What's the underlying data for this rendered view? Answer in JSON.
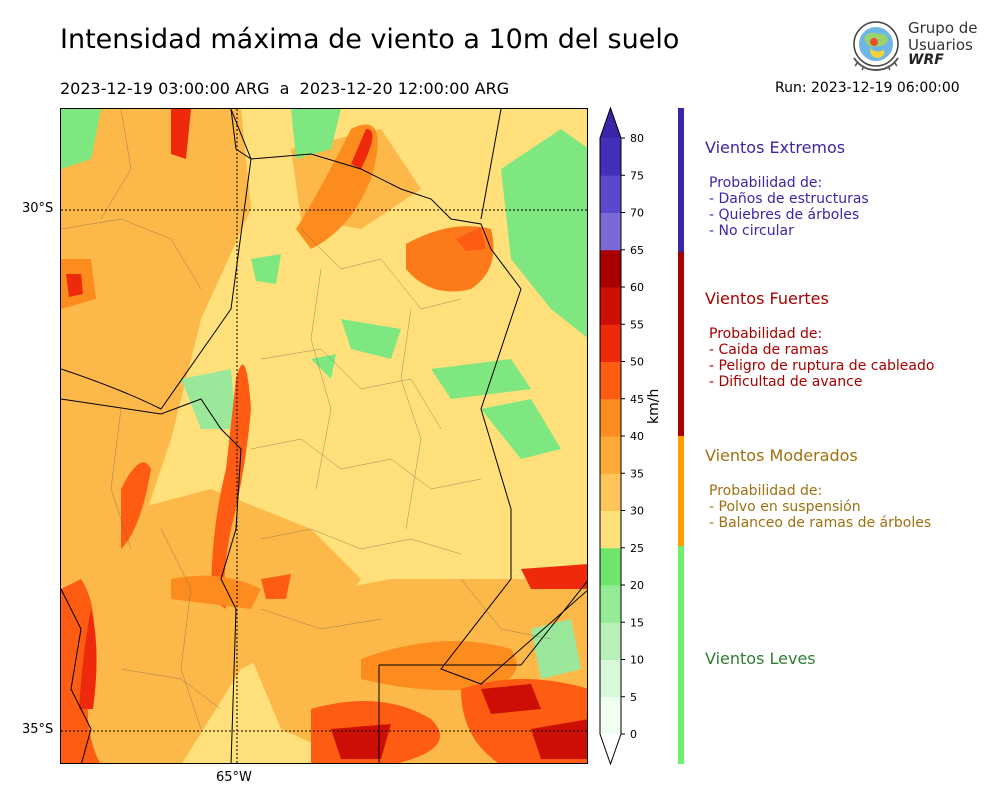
{
  "header": {
    "title": "Intensidad máxima de viento a 10m del suelo",
    "period_start": "2023-12-19 03:00:00 ARG",
    "period_sep": "a",
    "period_end": "2023-12-20 12:00:00 ARG",
    "run_label": "Run:",
    "run_time": "2023-12-19 06:00:00"
  },
  "logo": {
    "line1": "Grupo de",
    "line2": "Usuarios",
    "line3": "WRF",
    "icon": "globe-logo-icon"
  },
  "map": {
    "lat_labels": [
      "30°S",
      "35°S"
    ],
    "lon_labels": [
      "65°W"
    ],
    "grid_lines": "dotted"
  },
  "colorbar": {
    "unit": "km/h",
    "ticks": [
      0,
      5,
      10,
      15,
      20,
      25,
      30,
      35,
      40,
      45,
      50,
      55,
      60,
      65,
      70,
      75,
      80
    ],
    "colors": [
      "#f0fff0",
      "#d9f8d9",
      "#b9f0b9",
      "#96eb96",
      "#6ee66e",
      "#fee17a",
      "#fdc55a",
      "#fca935",
      "#fd8c1e",
      "#fd5c12",
      "#ef2a0c",
      "#cc0e05",
      "#a80000",
      "#7a6ad8",
      "#5a49cc",
      "#4230bb"
    ],
    "extend_min_color": "#ffffff",
    "extend_max_color": "#3a26a8"
  },
  "legend": [
    {
      "title": "Vientos Extremos",
      "color": "#3a26a8",
      "prob_title": "Probabilidad de:",
      "items": [
        "- Daños de estructuras",
        "- Quiebres de árboles",
        "- No circular"
      ]
    },
    {
      "title": "Vientos Fuertes",
      "color": "#a80000",
      "prob_title": "Probabilidad de:",
      "items": [
        "- Caida de ramas",
        "- Peligro de ruptura de cableado",
        "- Dificultad de avance"
      ]
    },
    {
      "title": "Vientos Moderados",
      "color": "#a07010",
      "bar_color": "#ff9e00",
      "prob_title": "Probabilidad de:",
      "items": [
        "- Polvo en suspensión",
        "- Balanceo de ramas de árboles"
      ]
    },
    {
      "title": "Vientos Leves",
      "color": "#2e7d32",
      "bar_color": "#6ef06e",
      "prob_title": "",
      "items": []
    }
  ]
}
